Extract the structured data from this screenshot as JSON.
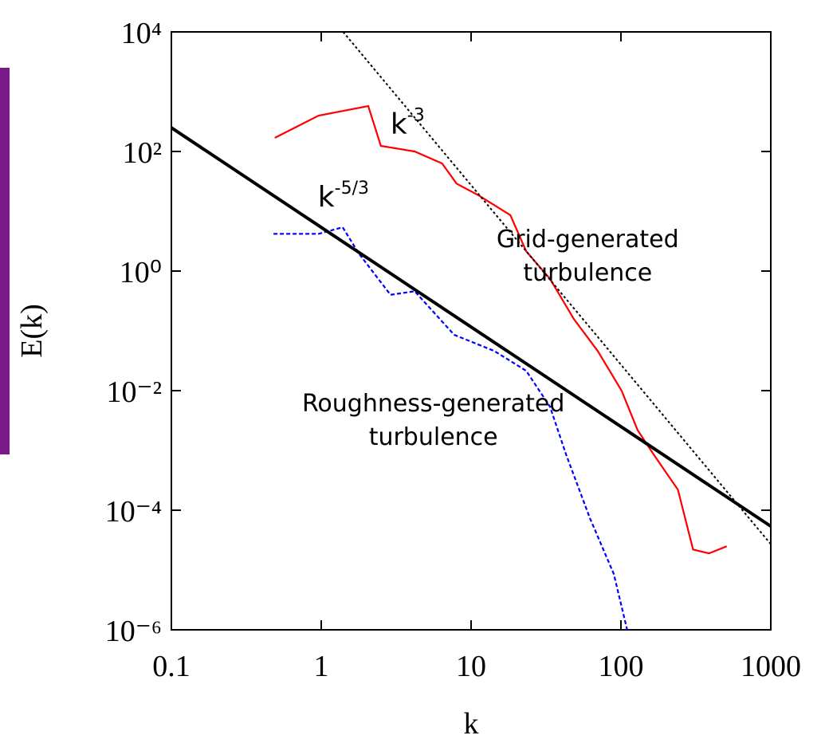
{
  "chart_data": {
    "type": "line",
    "x_label": "k",
    "y_label": "E(k)",
    "log_x": true,
    "log_y": true,
    "xlim": [
      0.1,
      1000
    ],
    "ylim": [
      1e-06,
      10000
    ],
    "xticks": [
      0.1,
      1,
      10,
      100,
      1000
    ],
    "yticks": [
      {
        "value": 1e-06,
        "label": "10⁻⁶"
      },
      {
        "value": 0.0001,
        "label": "10⁻⁴"
      },
      {
        "value": 0.01,
        "label": "10⁻²"
      },
      {
        "value": 1,
        "label": "10⁰"
      },
      {
        "value": 100,
        "label": "10²"
      },
      {
        "value": 10000,
        "label": "10⁴"
      }
    ],
    "series": [
      {
        "color": "#ff0000",
        "style": "solid",
        "x": [
          0.49,
          0.96,
          2.06,
          2.5,
          4.2,
          6.4,
          8.0,
          11.2,
          18.3,
          23.3,
          33.6,
          48.5,
          70,
          101,
          129,
          165,
          240,
          303,
          387,
          508
        ],
        "values": [
          169,
          398,
          575,
          124,
          100,
          63,
          29,
          18.5,
          8.6,
          2.15,
          0.74,
          0.158,
          0.046,
          0.01,
          0.0022,
          0.00086,
          0.00022,
          2.2e-05,
          1.9e-05,
          2.5e-05
        ]
      },
      {
        "color": "#0000ff",
        "style": "dashed",
        "x": [
          0.48,
          0.96,
          1.39,
          1.78,
          2.9,
          4.2,
          7.7,
          14.3,
          23.3,
          33.6,
          43,
          62,
          89.6,
          110
        ],
        "values": [
          4.2,
          4.2,
          5.4,
          1.97,
          0.4,
          0.46,
          0.086,
          0.046,
          0.0215,
          0.0054,
          0.00086,
          7.4e-05,
          8.6e-06,
          1e-06
        ]
      },
      {
        "color": "#000000",
        "style": "thick",
        "x": [
          0.1,
          1000
        ],
        "values": [
          250,
          5.4e-05
        ]
      },
      {
        "color": "#000000",
        "style": "dotted",
        "x": [
          1.4,
          1000
        ],
        "values": [
          10000,
          2.7e-05
        ]
      }
    ],
    "annotations": [
      {
        "base": "k",
        "sup": "-3",
        "x": 2.9,
        "y": 200
      },
      {
        "base": "k",
        "sup": "-5/3",
        "x": 0.95,
        "y": 12
      },
      {
        "lines": [
          "Grid-generated",
          "turbulence"
        ],
        "x": 60,
        "y": 2.5
      },
      {
        "lines": [
          "Roughness-generated",
          "turbulence"
        ],
        "x": 5.6,
        "y": 0.0045
      }
    ]
  }
}
